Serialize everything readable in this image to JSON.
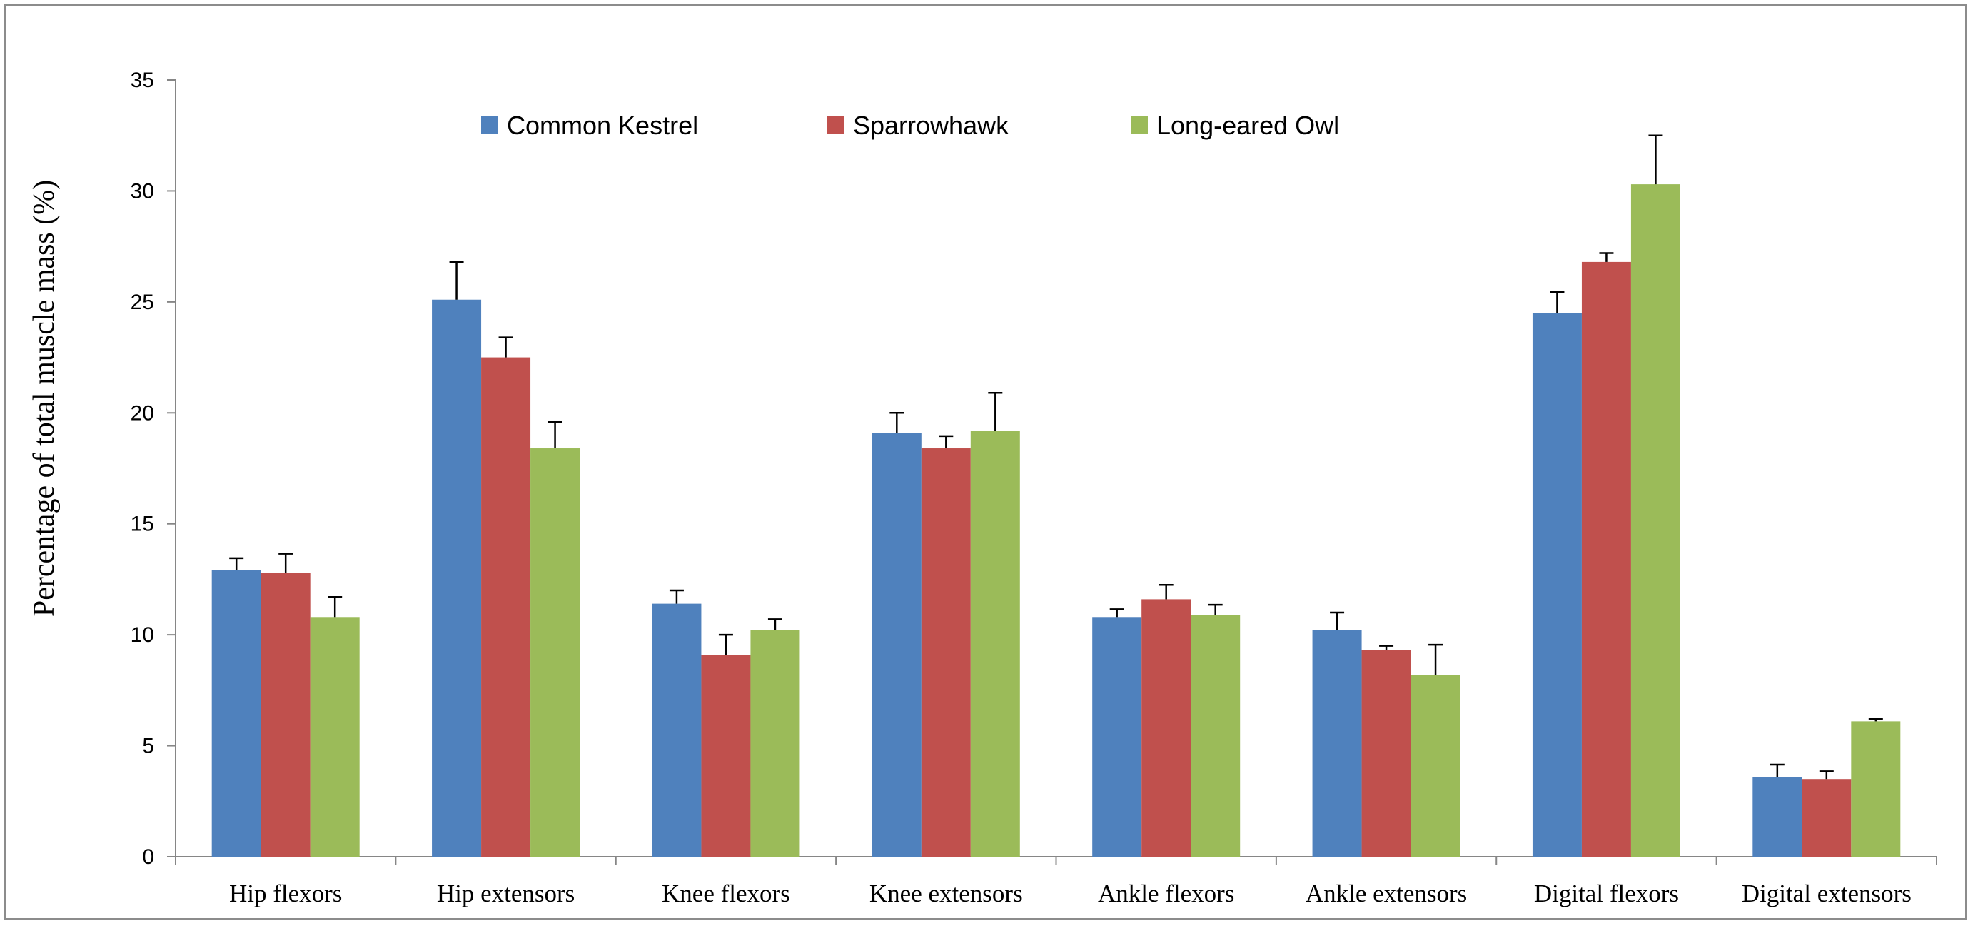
{
  "chart_data": {
    "type": "bar",
    "title": "",
    "xlabel": "",
    "ylabel": "Percentage of  total muscle mass (%)",
    "ylim": [
      0,
      35
    ],
    "yticks": [
      0,
      5,
      10,
      15,
      20,
      25,
      30,
      35
    ],
    "grid": false,
    "legend_position": "top",
    "categories": [
      "Hip flexors",
      "Hip extensors",
      "Knee flexors",
      "Knee extensors",
      "Ankle flexors",
      "Ankle extensors",
      "Digital flexors",
      "Digital extensors"
    ],
    "series": [
      {
        "name": "Common Kestrel",
        "color": "#4F81BD",
        "values": [
          12.9,
          25.1,
          11.4,
          19.1,
          10.8,
          10.2,
          24.5,
          3.6
        ],
        "errors": [
          0.55,
          1.7,
          0.6,
          0.9,
          0.35,
          0.8,
          0.95,
          0.55
        ]
      },
      {
        "name": "Sparrowhawk",
        "color": "#C0504D",
        "values": [
          12.8,
          22.5,
          9.1,
          18.4,
          11.6,
          9.3,
          26.8,
          3.5
        ],
        "errors": [
          0.85,
          0.9,
          0.9,
          0.55,
          0.65,
          0.2,
          0.4,
          0.35
        ]
      },
      {
        "name": "Long-eared Owl",
        "color": "#9BBB59",
        "values": [
          10.8,
          18.4,
          10.2,
          19.2,
          10.9,
          8.2,
          30.3,
          6.1
        ],
        "errors": [
          0.9,
          1.2,
          0.5,
          1.7,
          0.45,
          1.35,
          2.2,
          0.1
        ]
      }
    ]
  }
}
